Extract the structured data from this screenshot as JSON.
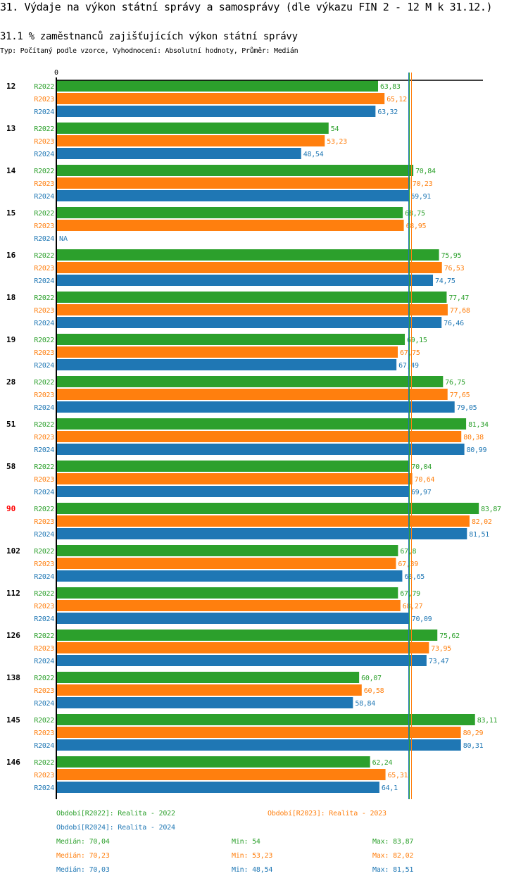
{
  "header": {
    "title": "31. Výdaje na výkon státní správy a samosprávy (dle výkazu FIN 2 - 12 M k 31.12.)",
    "subtitle": "31.1 % zaměstnanců zajišťujících výkon státní správy",
    "meta": "Typ: Počítaný podle vzorce, Vyhodnocení: Absolutní hodnoty, Průměr: Medián"
  },
  "colors": {
    "R2022": "#2ca02c",
    "R2023": "#ff7f0e",
    "R2024": "#1f77b4",
    "highlight": "#ff0000",
    "axis": "#000000"
  },
  "chart_data": {
    "type": "bar",
    "orientation": "horizontal",
    "title": "31.1 % zaměstnanců zajišťujících výkon státní správy",
    "xlabel": "",
    "ylabel": "",
    "x_tick_labels": [
      "0"
    ],
    "xlim": [
      0,
      85
    ],
    "grid": false,
    "decimal_separator": ",",
    "categories": [
      "12",
      "13",
      "14",
      "15",
      "16",
      "18",
      "19",
      "28",
      "51",
      "58",
      "90",
      "102",
      "112",
      "126",
      "138",
      "145",
      "146"
    ],
    "highlighted_category": "90",
    "series": [
      {
        "name": "R2022",
        "values": [
          63.83,
          54,
          70.84,
          68.75,
          75.95,
          77.47,
          69.15,
          76.75,
          81.34,
          70.04,
          83.87,
          67.8,
          67.79,
          75.62,
          60.07,
          83.11,
          62.24
        ]
      },
      {
        "name": "R2023",
        "values": [
          65.12,
          53.23,
          70.23,
          68.95,
          76.53,
          77.68,
          67.75,
          77.65,
          80.38,
          70.64,
          82.02,
          67.39,
          68.27,
          73.95,
          60.58,
          80.29,
          65.31
        ]
      },
      {
        "name": "R2024",
        "values": [
          63.32,
          48.54,
          69.91,
          null,
          74.75,
          76.46,
          67.49,
          79.05,
          80.99,
          69.97,
          81.51,
          68.65,
          70.09,
          73.47,
          58.84,
          80.31,
          64.1
        ]
      }
    ],
    "na_label": "NA",
    "reference_lines": [
      {
        "series": "R2022",
        "type": "median",
        "value": 70.04
      },
      {
        "series": "R2023",
        "type": "median",
        "value": 70.23
      },
      {
        "series": "R2024",
        "type": "median",
        "value": 70.03
      }
    ],
    "legend": [
      {
        "series": "R2022",
        "label": "Období[R2022]: Realita - 2022"
      },
      {
        "series": "R2023",
        "label": "Období[R2023]: Realita - 2023"
      },
      {
        "series": "R2024",
        "label": "Období[R2024]: Realita - 2024"
      }
    ],
    "legend_position": "bottom",
    "stats": [
      {
        "series": "R2022",
        "median": "Medián: 70,04",
        "min": "Min: 54",
        "max": "Max: 83,87"
      },
      {
        "series": "R2023",
        "median": "Medián: 70,23",
        "min": "Min: 53,23",
        "max": "Max: 82,02"
      },
      {
        "series": "R2024",
        "median": "Medián: 70,03",
        "min": "Min: 48,54",
        "max": "Max: 81,51"
      }
    ]
  }
}
